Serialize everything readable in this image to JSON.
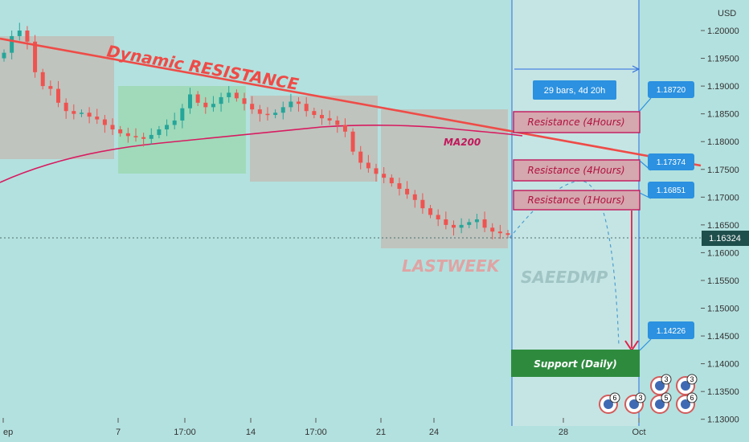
{
  "chart_data": {
    "type": "candlestick",
    "title": "",
    "symbol_pair_unit": "USD",
    "x_ticks": [
      "ep",
      "7",
      "17:00",
      "14",
      "17:00",
      "21",
      "24",
      "28",
      "Oct"
    ],
    "y_ticks": [
      "1.20000",
      "1.19500",
      "1.19000",
      "1.18500",
      "1.18000",
      "1.17500",
      "1.17000",
      "1.16500",
      "1.16000",
      "1.15500",
      "1.15000",
      "1.14500",
      "1.14000",
      "1.13500",
      "1.13000"
    ],
    "y_range": [
      1.1288,
      1.2055
    ],
    "grid": false,
    "current_price": "1.16324",
    "ohlc_close_path": [
      1.196,
      1.199,
      1.2,
      1.198,
      1.1925,
      1.19,
      1.1895,
      1.187,
      1.1855,
      1.185,
      1.1852,
      1.1845,
      1.184,
      1.183,
      1.1822,
      1.1815,
      1.181,
      1.1808,
      1.1805,
      1.1812,
      1.1822,
      1.183,
      1.1838,
      1.186,
      1.1885,
      1.187,
      1.1862,
      1.1868,
      1.188,
      1.1888,
      1.1878,
      1.1868,
      1.1858,
      1.185,
      1.1848,
      1.1852,
      1.1862,
      1.1872,
      1.1868,
      1.1855,
      1.1848,
      1.1842,
      1.1838,
      1.183,
      1.1818,
      1.1782,
      1.1762,
      1.1752,
      1.1742,
      1.1735,
      1.1725,
      1.1715,
      1.1705,
      1.1695,
      1.168,
      1.1668,
      1.166,
      1.165,
      1.1645,
      1.165,
      1.1655,
      1.166,
      1.1645,
      1.1638,
      1.1635,
      1.1632
    ],
    "ma200_label": "MA200",
    "resistance_title": "Dynamic RESISTANCE",
    "watermark_left": "LASTWEEK",
    "watermark_right": "SAEEDMP",
    "range_label": "29 bars, 4d 20h",
    "levels": [
      {
        "label": "Resistance (4Hours)",
        "price": "1.18720",
        "y": 1.1857
      },
      {
        "label": "Resistance (4Hours)",
        "price": "1.17374",
        "y": 1.1759
      },
      {
        "label": "Resistance (1Hours)",
        "price": "1.16851",
        "y": 1.1696
      },
      {
        "label": "Support (Daily)",
        "price": "1.14226",
        "y": 1.1401
      }
    ],
    "event_badges": [
      "6",
      "3",
      "3",
      "5",
      "3",
      "6"
    ]
  }
}
